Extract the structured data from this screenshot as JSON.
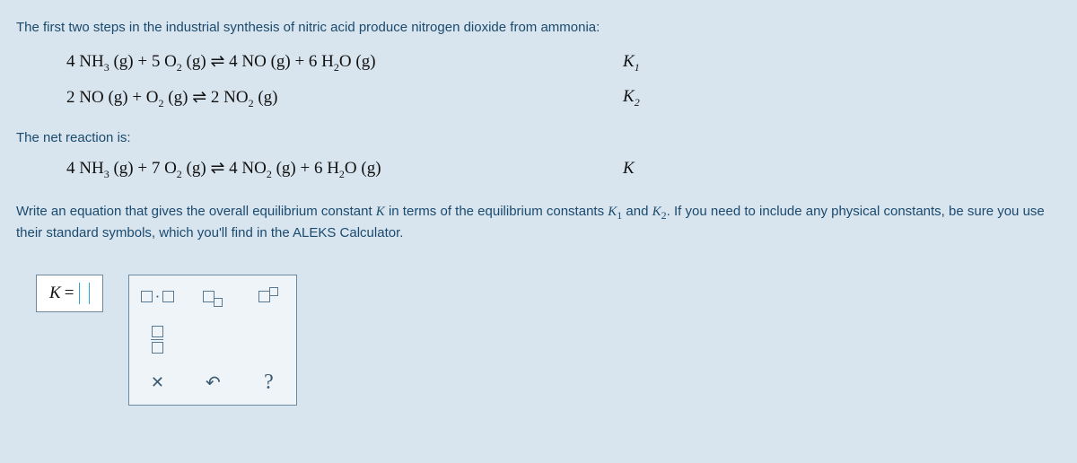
{
  "intro": "The first two steps in the industrial synthesis of nitric acid produce nitrogen dioxide from ammonia:",
  "rxn1": {
    "lhs_html": "4 NH<span class='s'>3</span> (g) + 5 O<span class='s'>2</span> (g) ⇌ 4 NO (g) + 6 H<span class='s'>2</span>O (g)",
    "k_label": "K",
    "k_sub": "1"
  },
  "rxn2": {
    "lhs_html": "2 NO (g) + O<span class='s'>2</span> (g) ⇌ 2 NO<span class='s'>2</span> (g)",
    "k_label": "K",
    "k_sub": "2"
  },
  "netlabel": "The net reaction is:",
  "rxn3": {
    "lhs_html": "4 NH<span class='s'>3</span> (g) + 7 O<span class='s'>2</span> (g) ⇌ 4 NO<span class='s'>2</span> (g) + 6 H<span class='s'>2</span>O (g)",
    "k_label": "K",
    "k_sub": ""
  },
  "prompt_pre": "Write an equation that gives the overall equilibrium constant ",
  "prompt_mid1": " in terms of the equilibrium constants ",
  "prompt_mid2": " and ",
  "prompt_post": ". If you need to include any physical constants, be sure you use their standard symbols, which you'll find in the ALEKS Calculator.",
  "answer_prefix": "K =",
  "tool_labels": {
    "mult": "·",
    "sub": "sub",
    "sup": "sup",
    "frac": "frac",
    "clear": "×",
    "undo": "↻",
    "help": "?"
  },
  "colors": {
    "bg": "#d9e5ee",
    "text": "#1a4a6e",
    "border": "#6b8aa1"
  }
}
